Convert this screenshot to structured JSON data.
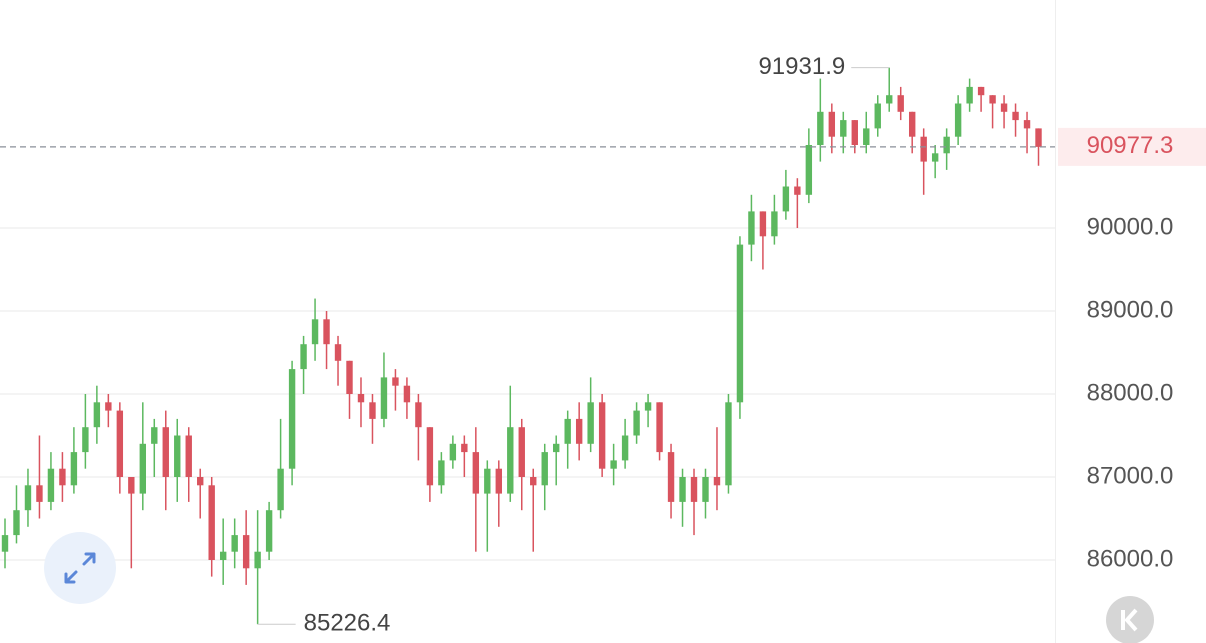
{
  "chart_data": {
    "type": "candlestick",
    "up_color": "#5cb85f",
    "down_color": "#d9535e",
    "ylim": [
      85000,
      92747
    ],
    "yticks": [
      {
        "value": 86000,
        "label": "86000.0"
      },
      {
        "value": 87000,
        "label": "87000.0"
      },
      {
        "value": 88000,
        "label": "88000.0"
      },
      {
        "value": 89000,
        "label": "89000.0"
      },
      {
        "value": 90000,
        "label": "90000.0"
      }
    ],
    "grid": true,
    "open": [
      86100,
      86300,
      86600,
      86900,
      86700,
      87100,
      86900,
      87300,
      87600,
      87900,
      87800,
      87000,
      86800,
      87400,
      87600,
      87000,
      87500,
      87000,
      86900,
      86000,
      86100,
      86300,
      85900,
      86100,
      86600,
      87100,
      88300,
      88600,
      88900,
      88600,
      88400,
      88000,
      87900,
      87700,
      88200,
      88100,
      87900,
      87600,
      86900,
      87200,
      87400,
      87300,
      86800,
      87100,
      86800,
      87600,
      87000,
      86900,
      87300,
      87400,
      87700,
      87400,
      87900,
      87100,
      87200,
      87500,
      87800,
      87900,
      87300,
      86700,
      87000,
      86700,
      87000,
      86900,
      87900,
      89800,
      90200,
      89900,
      90200,
      90500,
      90400,
      91000,
      91400,
      91100,
      91300,
      91000,
      91200,
      91500,
      91600,
      91400,
      91100,
      90800,
      90900,
      91100,
      91500,
      91700,
      91600,
      91500,
      91400,
      91300,
      91200
    ],
    "high": [
      86500,
      86900,
      87100,
      87500,
      87300,
      87300,
      87600,
      88000,
      88100,
      88000,
      87900,
      87000,
      87900,
      87700,
      87800,
      87700,
      87600,
      87100,
      87000,
      86500,
      86500,
      86600,
      86600,
      86700,
      87700,
      88400,
      88700,
      89150,
      89000,
      88700,
      88400,
      88200,
      88000,
      88500,
      88300,
      88200,
      88000,
      87600,
      87300,
      87500,
      87500,
      87600,
      87200,
      87200,
      88100,
      87700,
      87100,
      87400,
      87500,
      87800,
      87900,
      88200,
      88000,
      87400,
      87700,
      87900,
      88000,
      87900,
      87400,
      87100,
      87100,
      87100,
      87600,
      88000,
      89900,
      90400,
      90200,
      90400,
      90700,
      90600,
      91200,
      91800,
      91500,
      91400,
      91300,
      91400,
      91600,
      91931.9,
      91700,
      91400,
      91200,
      91000,
      91200,
      91600,
      91800,
      91700,
      91600,
      91600,
      91500,
      91400,
      91200
    ],
    "low": [
      85900,
      86200,
      86400,
      86500,
      86600,
      86700,
      86800,
      87100,
      87400,
      87600,
      86800,
      85900,
      86600,
      87000,
      86600,
      86700,
      86700,
      86500,
      85800,
      85700,
      85900,
      85700,
      85226.4,
      86000,
      86500,
      86900,
      88000,
      88400,
      88300,
      88100,
      87700,
      87600,
      87400,
      87600,
      87800,
      87700,
      87200,
      86700,
      86800,
      87100,
      87000,
      86100,
      86100,
      86400,
      86700,
      86600,
      86100,
      86600,
      86900,
      87100,
      87200,
      87300,
      87000,
      86900,
      87100,
      87400,
      87600,
      87200,
      86500,
      86400,
      86300,
      86500,
      86600,
      86800,
      87700,
      89600,
      89500,
      89800,
      90100,
      90000,
      90300,
      90800,
      90900,
      90900,
      90900,
      90900,
      91100,
      91400,
      91300,
      90900,
      90400,
      90600,
      90700,
      91000,
      91400,
      91400,
      91200,
      91200,
      91100,
      90900,
      90750
    ],
    "close": [
      86300,
      86600,
      86900,
      86700,
      87100,
      86900,
      87300,
      87600,
      87900,
      87800,
      87000,
      86800,
      87400,
      87600,
      87000,
      87500,
      87000,
      86900,
      86000,
      86100,
      86300,
      85900,
      86100,
      86600,
      87100,
      88300,
      88600,
      88900,
      88600,
      88400,
      88000,
      87900,
      87700,
      88200,
      88100,
      87900,
      87600,
      86900,
      87200,
      87400,
      87300,
      86800,
      87100,
      86800,
      87600,
      87000,
      86900,
      87300,
      87400,
      87700,
      87400,
      87900,
      87100,
      87200,
      87500,
      87800,
      87900,
      87300,
      86700,
      87000,
      86700,
      87000,
      86900,
      87900,
      89800,
      90200,
      89900,
      90200,
      90500,
      90400,
      91000,
      91400,
      91100,
      91300,
      91000,
      91200,
      91500,
      91600,
      91400,
      91100,
      90800,
      90900,
      91100,
      91500,
      91700,
      91600,
      91500,
      91400,
      91300,
      91200,
      90977.3
    ],
    "value_labels": {
      "last": "90977.3",
      "max": "91931.9",
      "min": "85226.4"
    }
  }
}
